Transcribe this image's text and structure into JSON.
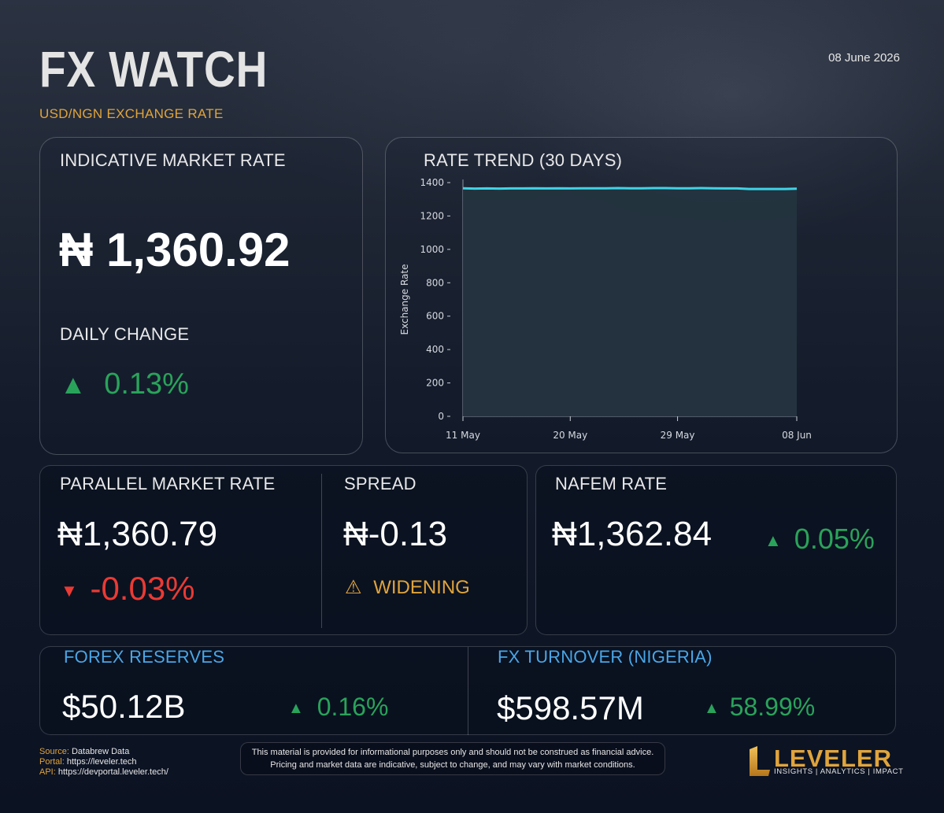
{
  "header": {
    "title": "FX WATCH",
    "subtitle": "USD/NGN EXCHANGE RATE",
    "date": "08 June 2026"
  },
  "indicative": {
    "label": "INDICATIVE MARKET RATE",
    "value": "₦ 1,360.92",
    "change_label": "DAILY CHANGE",
    "change_arrow": "▲",
    "change_value": "0.13%"
  },
  "trend": {
    "label": "RATE TREND (30 DAYS)"
  },
  "chart_data": {
    "type": "area",
    "title": "RATE TREND (30 DAYS)",
    "ylabel": "Exchange Rate",
    "xlabel": "",
    "ylim": [
      0,
      1400
    ],
    "yticks": [
      0,
      200,
      400,
      600,
      800,
      1000,
      1200,
      1400
    ],
    "x_start": "11 May",
    "x_end": "08 Jun",
    "xtick_labels": [
      "11 May",
      "20 May",
      "29 May",
      "08 Jun"
    ],
    "xtick_day_index": [
      0,
      9,
      18,
      28
    ],
    "grid": false,
    "series": [
      {
        "color": "#3fd3e6",
        "fill": "#24343f",
        "values": [
          1366,
          1364,
          1365,
          1364,
          1365,
          1365,
          1366,
          1365,
          1366,
          1365,
          1366,
          1366,
          1366,
          1367,
          1366,
          1366,
          1367,
          1367,
          1366,
          1366,
          1367,
          1366,
          1365,
          1365,
          1362,
          1362,
          1362,
          1362,
          1363
        ]
      }
    ]
  },
  "parallel": {
    "label": "PARALLEL MARKET RATE",
    "value": "₦1,360.79",
    "arrow": "▼",
    "change": "-0.03%"
  },
  "spread": {
    "label": "SPREAD",
    "value": "₦-0.13",
    "status_icon": "⚠",
    "status": "WIDENING"
  },
  "nafem": {
    "label": "NAFEM RATE",
    "value": "₦1,362.84",
    "arrow": "▲",
    "change": "0.05%"
  },
  "reserves": {
    "label": "FOREX RESERVES",
    "value": "$50.12B",
    "arrow": "▲",
    "change": "0.16%"
  },
  "turnover": {
    "label": "FX TURNOVER (NIGERIA)",
    "value": "$598.57M",
    "arrow": "▲",
    "change": "58.99%"
  },
  "footer": {
    "source_key": "Source:",
    "source_val": "Databrew Data",
    "portal_key": "Portal:",
    "portal_val": "https://leveler.tech",
    "api_key": "API:",
    "api_val": "https://devportal.leveler.tech/",
    "disclaimer_line1": "This material is provided for informational purposes only and should not be construed as financial advice.",
    "disclaimer_line2": "Pricing and market data are indicative, subject to change, and may vary with market conditions.",
    "logo_mark": "L",
    "logo_name": "LEVELER",
    "logo_tagline": "INSIGHTS | ANALYTICS | IMPACT"
  },
  "colors": {
    "accent": "#e0a43c",
    "positive": "#2aa35a",
    "negative": "#ea3a34",
    "info": "#4aa6e6",
    "line": "#3fd3e6"
  }
}
